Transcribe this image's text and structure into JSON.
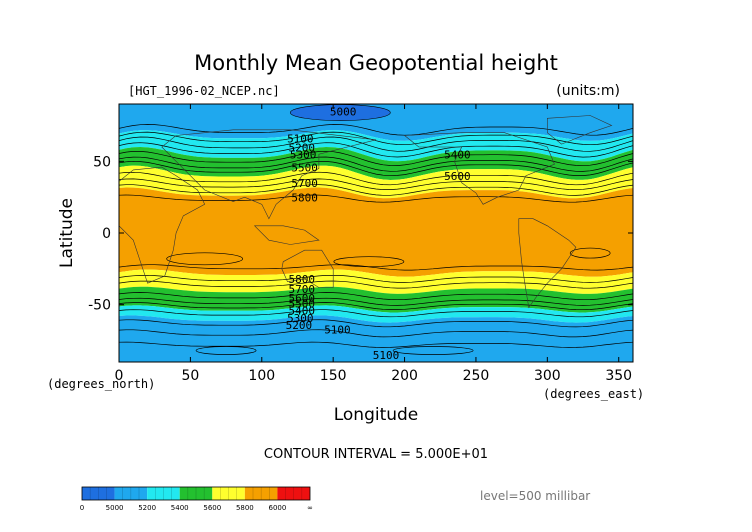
{
  "chart_data": {
    "type": "heatmap",
    "title": "Monthly Mean Geopotential height",
    "subtitle_left": "[HGT_1996-02_NCEP.nc]",
    "subtitle_right": "(units:m)",
    "xlabel": "Longitude",
    "ylabel": "Latitude",
    "x_unit_label": "(degrees_east)",
    "y_unit_label": "(degrees_north)",
    "xlim": [
      0,
      360
    ],
    "ylim": [
      -90,
      90
    ],
    "x_ticks": [
      0,
      50,
      100,
      150,
      200,
      250,
      300,
      350
    ],
    "y_ticks": [
      -50,
      0,
      50
    ],
    "contour_interval_text": "CONTOUR INTERVAL = 5.000E+01",
    "level_text": "level=500 millibar",
    "contour_labels": [
      {
        "text": "5000",
        "lon": 157,
        "lat": 82
      },
      {
        "text": "5100",
        "lon": 127,
        "lat": 63
      },
      {
        "text": "5200",
        "lon": 128,
        "lat": 57
      },
      {
        "text": "5300",
        "lon": 129,
        "lat": 52
      },
      {
        "text": "5400",
        "lon": 237,
        "lat": 52
      },
      {
        "text": "5500",
        "lon": 130,
        "lat": 43
      },
      {
        "text": "5600",
        "lon": 237,
        "lat": 37
      },
      {
        "text": "5700",
        "lon": 130,
        "lat": 32
      },
      {
        "text": "5800",
        "lon": 130,
        "lat": 22
      },
      {
        "text": "5800",
        "lon": 128,
        "lat": -35
      },
      {
        "text": "5700",
        "lon": 128,
        "lat": -42
      },
      {
        "text": "5600",
        "lon": 128,
        "lat": -48
      },
      {
        "text": "5500",
        "lon": 128,
        "lat": -52
      },
      {
        "text": "5400",
        "lon": 128,
        "lat": -57
      },
      {
        "text": "5300",
        "lon": 127,
        "lat": -62
      },
      {
        "text": "5200",
        "lon": 126,
        "lat": -67
      },
      {
        "text": "5100",
        "lon": 153,
        "lat": -70
      },
      {
        "text": "5100",
        "lon": 187,
        "lat": -88
      }
    ],
    "colorbar": {
      "tick_labels": [
        "0",
        "5000",
        "5200",
        "5400",
        "5600",
        "5800",
        "6000",
        "∞"
      ],
      "colors": [
        "#1e6fe0",
        "#1fa8ee",
        "#22e8f0",
        "#23c02f",
        "#ffff2e",
        "#f5a000",
        "#ee1010"
      ]
    },
    "band_colors": {
      "deep_blue": "#1e6fe0",
      "blue": "#1fa8ee",
      "cyan": "#22e8f0",
      "green": "#23c02f",
      "yellow": "#ffff2e",
      "orange": "#f5a000"
    }
  }
}
